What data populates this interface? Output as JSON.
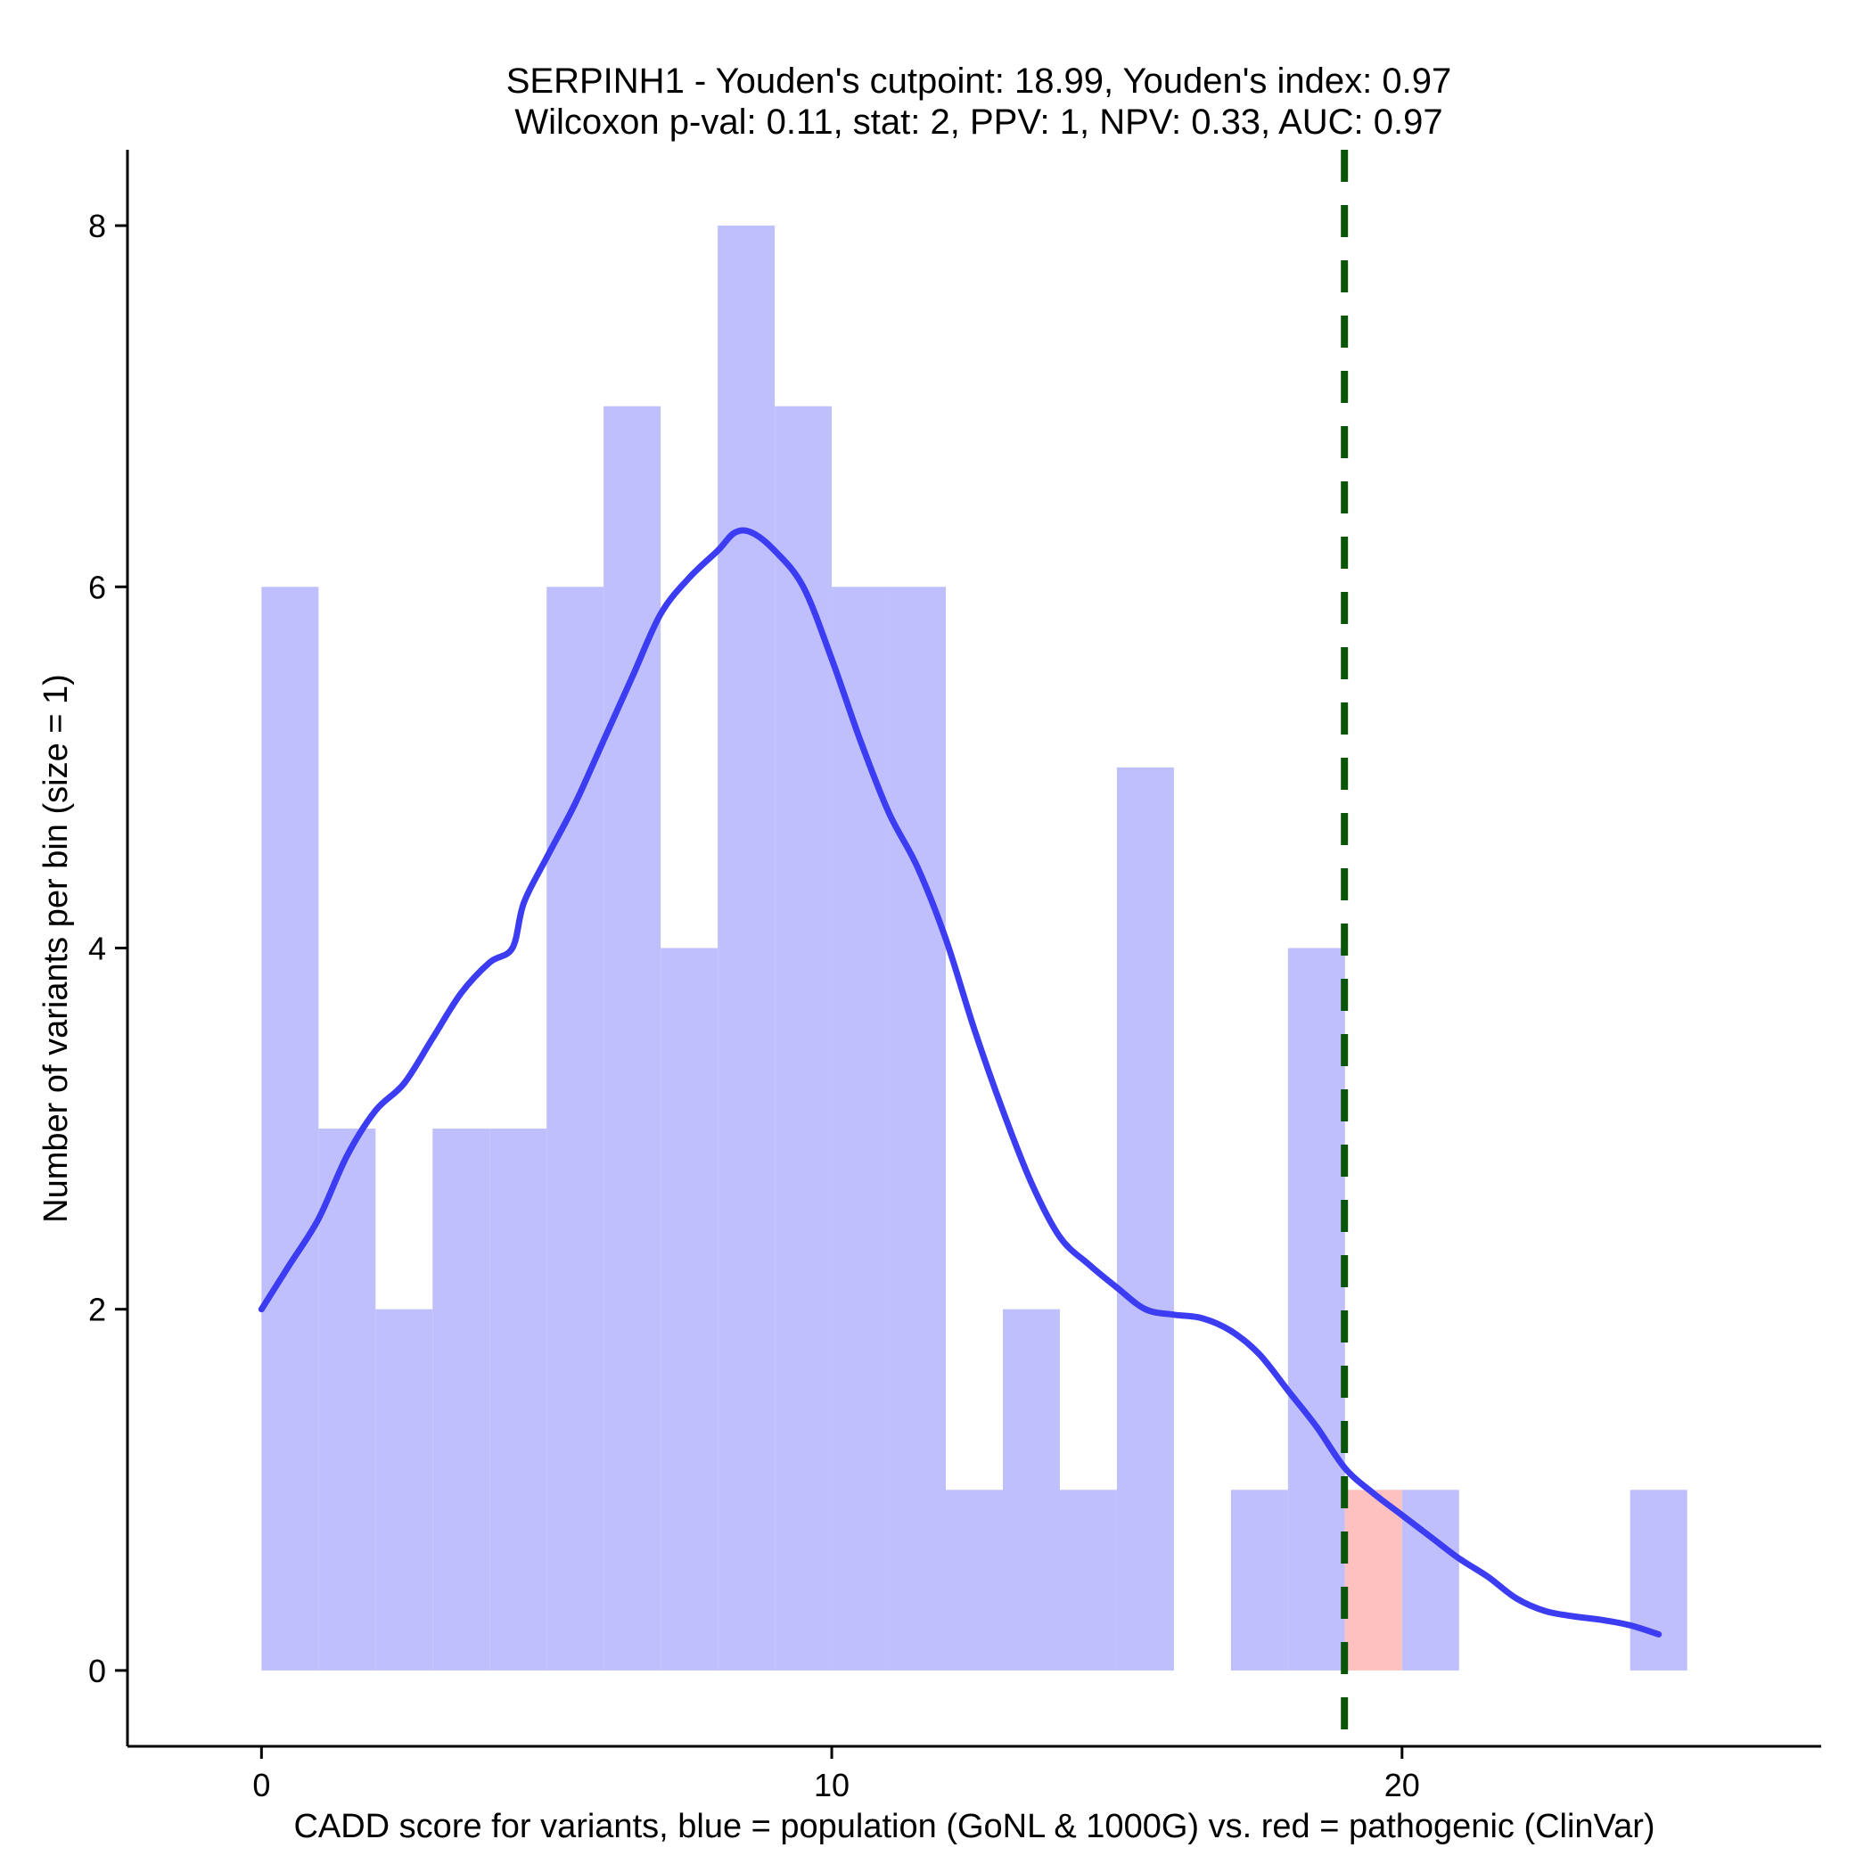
{
  "chart_data": {
    "type": "histogram",
    "title_line1": "SERPINH1 - Youden's cutpoint: 18.99, Youden's index: 0.97",
    "title_line2": "Wilcoxon p-val: 0.11, stat: 2, PPV: 1, NPV: 0.33, AUC: 0.97",
    "xlabel": "CADD score for variants, blue = population (GoNL & 1000G) vs. red = pathogenic (ClinVar)",
    "ylabel": "Number of variants per bin (size = 1)",
    "xlim": [
      -2.35,
      27.35
    ],
    "ylim": [
      -0.42,
      8.42
    ],
    "x_ticks": [
      0,
      10,
      20
    ],
    "y_ticks": [
      0,
      2,
      4,
      6,
      8
    ],
    "bin_size": 1,
    "cutpoint": 18.99,
    "series": [
      {
        "name": "population (GoNL & 1000G)",
        "color": "#bfbffd",
        "bins": [
          {
            "x0": 0,
            "count": 6
          },
          {
            "x0": 1,
            "count": 3
          },
          {
            "x0": 2,
            "count": 2
          },
          {
            "x0": 3,
            "count": 3
          },
          {
            "x0": 4,
            "count": 3
          },
          {
            "x0": 5,
            "count": 6
          },
          {
            "x0": 6,
            "count": 7
          },
          {
            "x0": 7,
            "count": 4
          },
          {
            "x0": 8,
            "count": 8
          },
          {
            "x0": 9,
            "count": 7
          },
          {
            "x0": 10,
            "count": 6
          },
          {
            "x0": 11,
            "count": 6
          },
          {
            "x0": 12,
            "count": 1
          },
          {
            "x0": 13,
            "count": 2
          },
          {
            "x0": 14,
            "count": 1
          },
          {
            "x0": 15,
            "count": 5
          },
          {
            "x0": 17,
            "count": 1
          },
          {
            "x0": 18,
            "count": 4
          },
          {
            "x0": 20,
            "count": 1
          },
          {
            "x0": 24,
            "count": 1
          }
        ]
      },
      {
        "name": "pathogenic (ClinVar)",
        "color": "#ffc0c0",
        "bins": [
          {
            "x0": 19,
            "count": 1
          }
        ]
      }
    ],
    "density_curve": {
      "name": "population density (scaled)",
      "color": "#3c3cf2",
      "points": [
        [
          0,
          2.0
        ],
        [
          0.5,
          2.25
        ],
        [
          1,
          2.5
        ],
        [
          1.5,
          2.85
        ],
        [
          2,
          3.1
        ],
        [
          2.5,
          3.25
        ],
        [
          3,
          3.5
        ],
        [
          3.5,
          3.75
        ],
        [
          4,
          3.92
        ],
        [
          4.4,
          4.0
        ],
        [
          4.6,
          4.25
        ],
        [
          5,
          4.5
        ],
        [
          5.5,
          4.8
        ],
        [
          6,
          5.15
        ],
        [
          6.5,
          5.5
        ],
        [
          7,
          5.85
        ],
        [
          7.5,
          6.05
        ],
        [
          8,
          6.2
        ],
        [
          8.3,
          6.3
        ],
        [
          8.6,
          6.3
        ],
        [
          9,
          6.2
        ],
        [
          9.5,
          6.0
        ],
        [
          10,
          5.6
        ],
        [
          10.5,
          5.15
        ],
        [
          11,
          4.75
        ],
        [
          11.5,
          4.45
        ],
        [
          12,
          4.05
        ],
        [
          12.5,
          3.55
        ],
        [
          13,
          3.1
        ],
        [
          13.5,
          2.7
        ],
        [
          14,
          2.4
        ],
        [
          14.5,
          2.25
        ],
        [
          15,
          2.12
        ],
        [
          15.5,
          2.0
        ],
        [
          16,
          1.97
        ],
        [
          16.5,
          1.95
        ],
        [
          17,
          1.88
        ],
        [
          17.5,
          1.75
        ],
        [
          18,
          1.55
        ],
        [
          18.5,
          1.35
        ],
        [
          19,
          1.12
        ],
        [
          19.5,
          0.98
        ],
        [
          20,
          0.86
        ],
        [
          20.5,
          0.74
        ],
        [
          21,
          0.62
        ],
        [
          21.5,
          0.52
        ],
        [
          22,
          0.4
        ],
        [
          22.5,
          0.33
        ],
        [
          23,
          0.3
        ],
        [
          23.5,
          0.28
        ],
        [
          24,
          0.25
        ],
        [
          24.5,
          0.2
        ]
      ]
    },
    "cutpoint_line_color": "#0b550b"
  }
}
